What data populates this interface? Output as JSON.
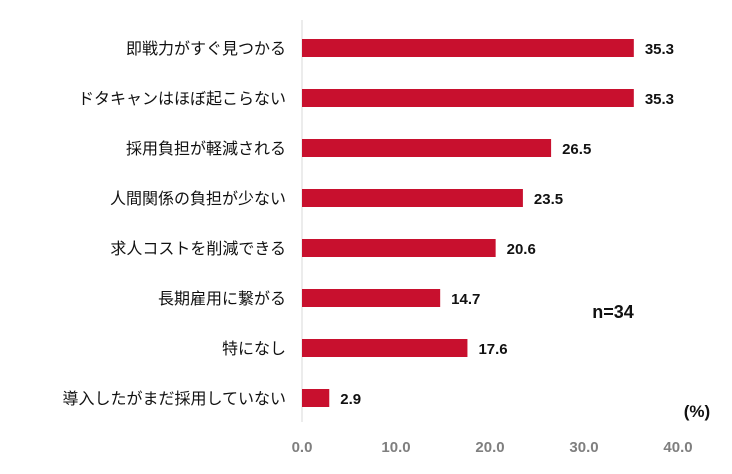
{
  "chart_data": {
    "type": "bar",
    "orientation": "horizontal",
    "categories": [
      "即戦力がすぐ見つかる",
      "ドタキャンはほぼ起こらない",
      "採用負担が軽減される",
      "人間関係の負担が少ない",
      "求人コストを削減できる",
      "長期雇用に繋がる",
      "特になし",
      "導入したがまだ採用していない"
    ],
    "values": [
      35.3,
      35.3,
      26.5,
      23.5,
      20.6,
      14.7,
      17.6,
      2.9
    ],
    "value_labels": [
      "35.3",
      "35.3",
      "26.5",
      "23.5",
      "20.6",
      "14.7",
      "17.6",
      "2.9"
    ],
    "xlim": [
      0,
      40
    ],
    "x_ticks": [
      "0.0",
      "10.0",
      "20.0",
      "30.0",
      "40.0"
    ],
    "unit_label": "(%)",
    "note": "n=34",
    "bar_color": "#c8102e",
    "grid": false
  }
}
